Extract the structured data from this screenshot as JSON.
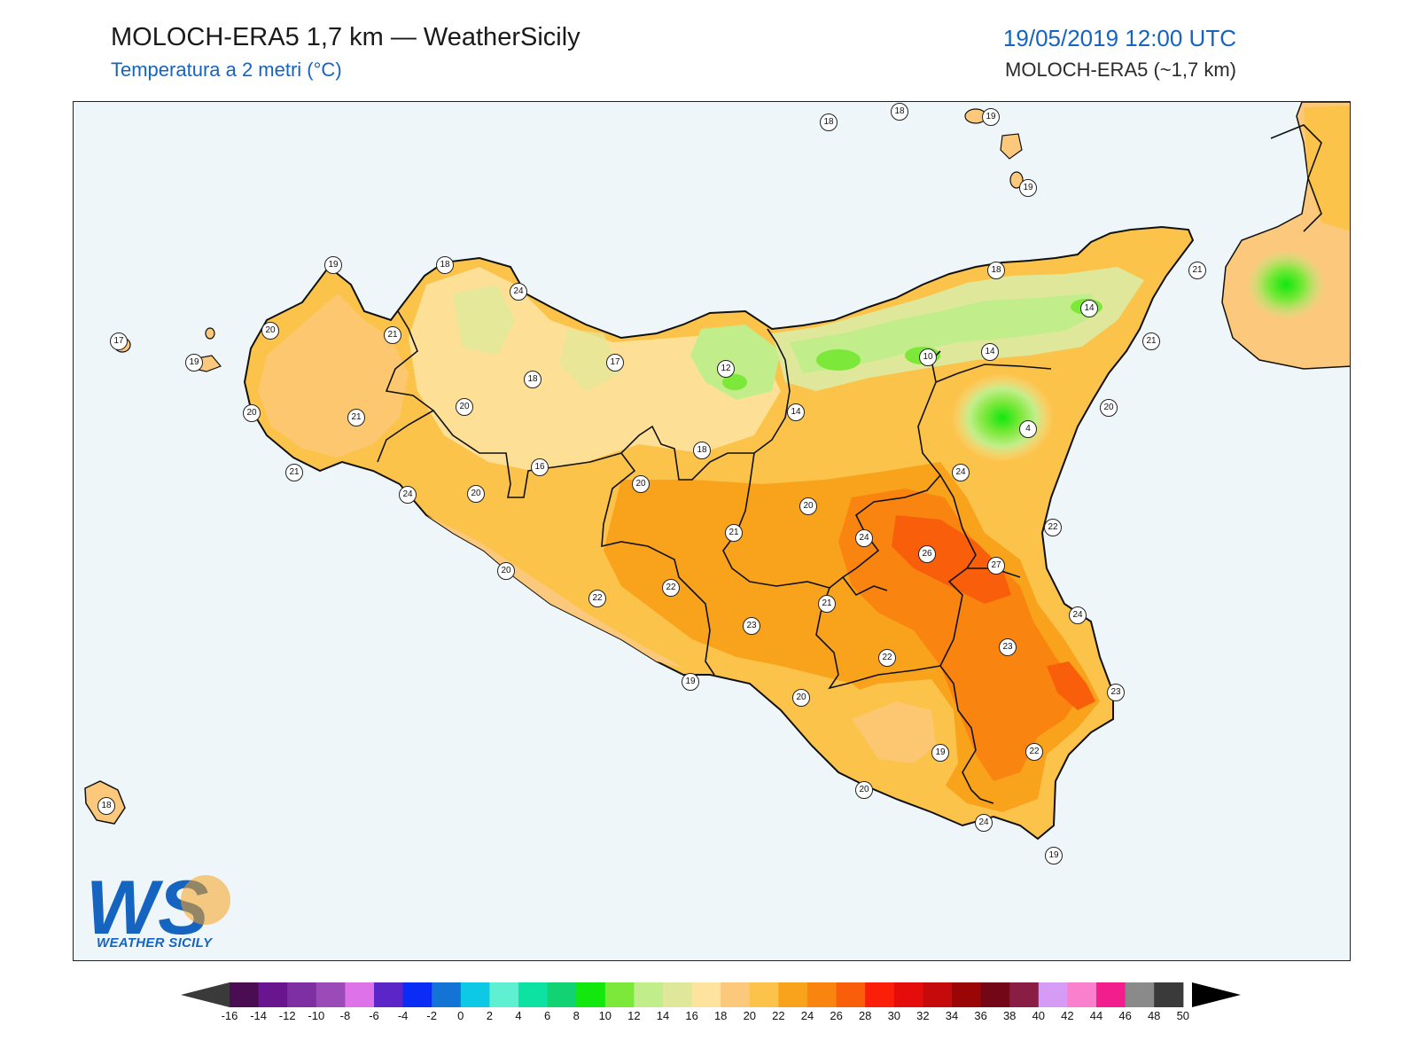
{
  "header": {
    "title": "MOLOCH-ERA5 1,7 km — WeatherSicily",
    "subtitle": "Temperatura a 2 metri (°C)",
    "datetime": "19/05/2019 12:00 UTC",
    "model": "MOLOCH-ERA5 (~1,7 km)"
  },
  "logo": {
    "letters": "WS",
    "text": "WEATHER SICILY"
  },
  "colors": {
    "sea": "#eef6fa",
    "base_land": "#fbc46a",
    "accent_blue": "#1565c0"
  },
  "legend": {
    "unit": "°C",
    "ticks": [
      "-16",
      "-14",
      "-12",
      "-10",
      "-8",
      "-6",
      "-4",
      "-2",
      "0",
      "2",
      "4",
      "6",
      "8",
      "10",
      "12",
      "14",
      "16",
      "18",
      "20",
      "22",
      "24",
      "26",
      "28",
      "30",
      "32",
      "34",
      "36",
      "38",
      "40",
      "42",
      "44",
      "46",
      "48",
      "50"
    ],
    "colors": [
      "#4a0d52",
      "#6a1590",
      "#7e2fa2",
      "#9a4bb8",
      "#dd72e9",
      "#5b25c8",
      "#0b2cf5",
      "#1474d6",
      "#0ec9e6",
      "#5ff0d2",
      "#0ee2a3",
      "#12d374",
      "#12e80e",
      "#7ce83a",
      "#c1ee8a",
      "#dfe89a",
      "#fde39d",
      "#fcc87b",
      "#fcc34a",
      "#f9a21b",
      "#f98510",
      "#f95e0b",
      "#fb1f0a",
      "#e50c0c",
      "#c40a0a",
      "#9a0505",
      "#730717",
      "#8a1d43",
      "#d69bf5",
      "#fa7fcc",
      "#f31e8e",
      "#8a8a8a",
      "#3a3a3a"
    ]
  },
  "stations": [
    {
      "v": "18"
    },
    {
      "v": "18"
    },
    {
      "v": "19"
    },
    {
      "v": "19"
    },
    {
      "v": "19"
    },
    {
      "v": "18"
    },
    {
      "v": "24"
    },
    {
      "v": "18"
    },
    {
      "v": "21"
    },
    {
      "v": "17"
    },
    {
      "v": "19"
    },
    {
      "v": "20"
    },
    {
      "v": "21"
    },
    {
      "v": "14"
    },
    {
      "v": "18"
    },
    {
      "v": "17"
    },
    {
      "v": "12"
    },
    {
      "v": "10"
    },
    {
      "v": "14"
    },
    {
      "v": "21"
    },
    {
      "v": "20"
    },
    {
      "v": "20"
    },
    {
      "v": "21"
    },
    {
      "v": "14"
    },
    {
      "v": "4"
    },
    {
      "v": "20"
    },
    {
      "v": "21"
    },
    {
      "v": "18"
    },
    {
      "v": "16"
    },
    {
      "v": "20"
    },
    {
      "v": "24"
    },
    {
      "v": "20"
    },
    {
      "v": "24"
    },
    {
      "v": "21"
    },
    {
      "v": "20"
    },
    {
      "v": "22"
    },
    {
      "v": "24"
    },
    {
      "v": "26"
    },
    {
      "v": "27"
    },
    {
      "v": "20"
    },
    {
      "v": "22"
    },
    {
      "v": "22"
    },
    {
      "v": "21"
    },
    {
      "v": "23"
    },
    {
      "v": "24"
    },
    {
      "v": "23"
    },
    {
      "v": "22"
    },
    {
      "v": "19"
    },
    {
      "v": "23"
    },
    {
      "v": "20"
    },
    {
      "v": "19"
    },
    {
      "v": "22"
    },
    {
      "v": "20"
    },
    {
      "v": "24"
    },
    {
      "v": "19"
    },
    {
      "v": "18"
    }
  ]
}
